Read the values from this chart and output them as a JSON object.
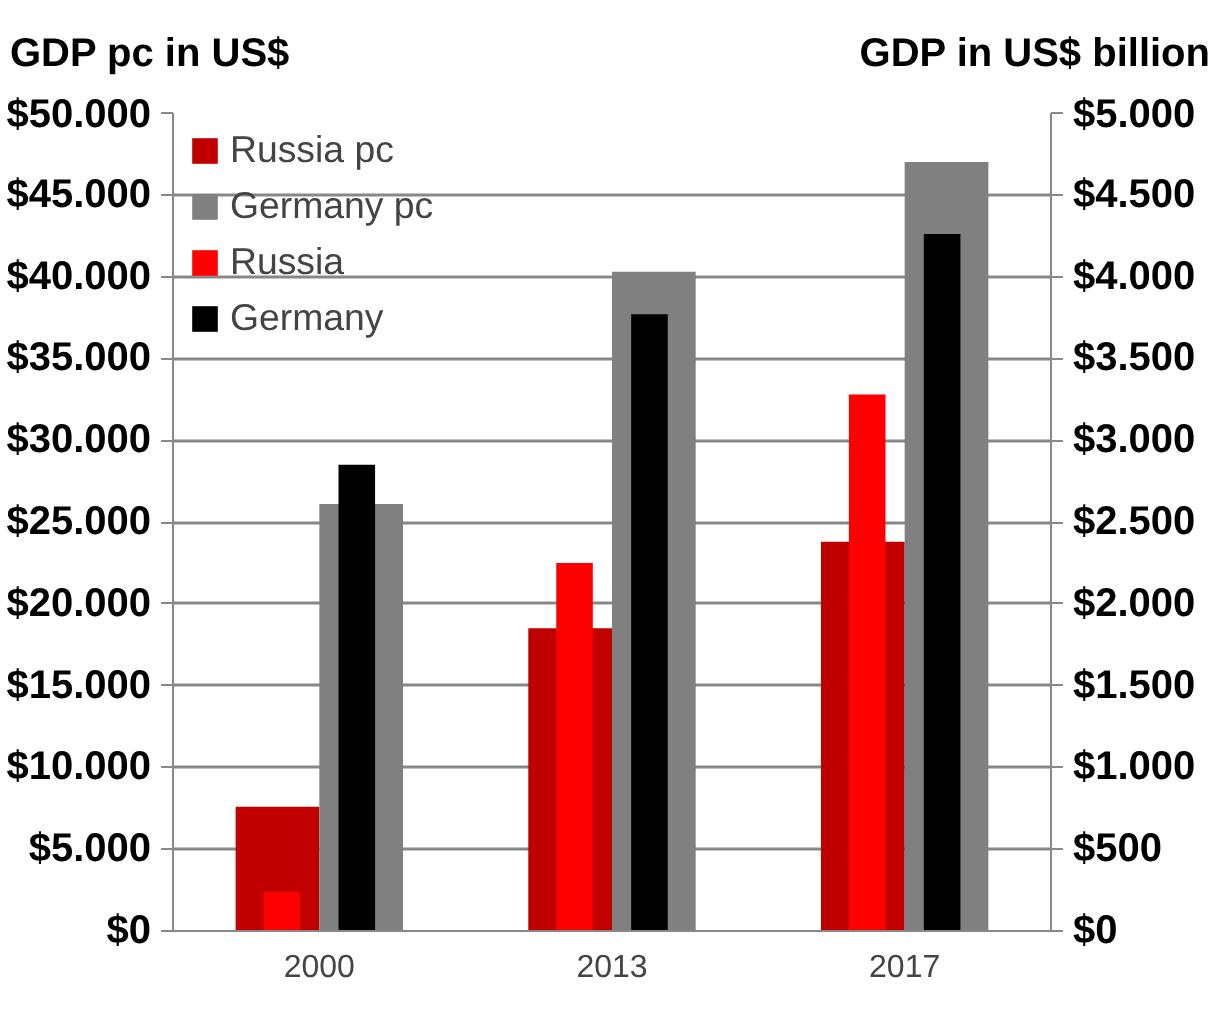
{
  "chart_data": {
    "type": "bar",
    "ylabel": "GDP pc in US$",
    "y2label": "GDP in US$ billion",
    "categories": [
      "2000",
      "2013",
      "2017"
    ],
    "series": [
      {
        "name": "Russia pc",
        "color": "#c00000",
        "values": [
          7600,
          18500,
          23800
        ]
      },
      {
        "name": "Germany pc",
        "color": "#808080",
        "values": [
          26100,
          40300,
          47000
        ]
      },
      {
        "name": "Russia",
        "color": "#ff0000",
        "values": [
          240,
          2250,
          3280
        ],
        "axis": "y2"
      },
      {
        "name": "Germany",
        "color": "#000000",
        "values": [
          2850,
          3770,
          4260
        ],
        "axis": "y2"
      }
    ],
    "ylim": [
      0,
      50000
    ],
    "yticks": [
      {
        "value": 0,
        "label": "$0"
      },
      {
        "value": 5000,
        "label": "$5.000"
      },
      {
        "value": 10000,
        "label": "$10.000"
      },
      {
        "value": 15000,
        "label": "$15.000"
      },
      {
        "value": 20000,
        "label": "$20.000"
      },
      {
        "value": 25000,
        "label": "$25.000"
      },
      {
        "value": 30000,
        "label": "$30.000"
      },
      {
        "value": 35000,
        "label": "$35.000"
      },
      {
        "value": 40000,
        "label": "$40.000"
      },
      {
        "value": 45000,
        "label": "$45.000"
      },
      {
        "value": 50000,
        "label": "$50.000"
      }
    ],
    "y2lim": [
      0,
      5000
    ],
    "y2ticks": [
      {
        "value": 0,
        "label": "$0"
      },
      {
        "value": 500,
        "label": "$500"
      },
      {
        "value": 1000,
        "label": "$1.000"
      },
      {
        "value": 1500,
        "label": "$1.500"
      },
      {
        "value": 2000,
        "label": "$2.000"
      },
      {
        "value": 2500,
        "label": "$2.500"
      },
      {
        "value": 3000,
        "label": "$3.000"
      },
      {
        "value": 3500,
        "label": "$3.500"
      },
      {
        "value": 4000,
        "label": "$4.000"
      },
      {
        "value": 4500,
        "label": "$4.500"
      },
      {
        "value": 5000,
        "label": "$5.000"
      }
    ],
    "grid": "y",
    "legend": "top left"
  }
}
